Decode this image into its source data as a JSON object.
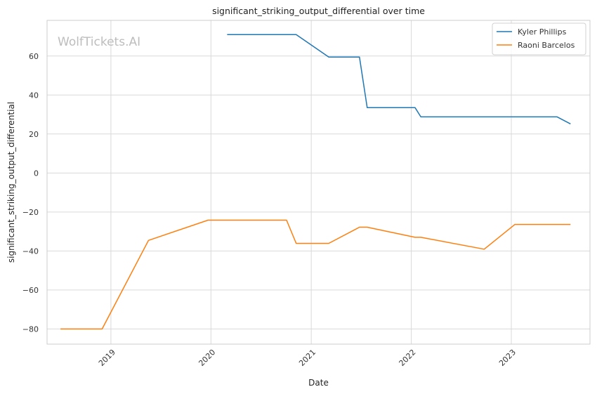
{
  "chart_data": {
    "type": "line",
    "title": "significant_striking_output_differential over time",
    "xlabel": "Date",
    "ylabel": "significant_striking_output_differential",
    "watermark": "WolfTickets.AI",
    "x_type": "date",
    "xlim": [
      "2018-05-13",
      "2023-10-15"
    ],
    "ylim": [
      -87.8,
      78.3
    ],
    "x_ticks": [
      "2019-01-01",
      "2020-01-01",
      "2021-01-01",
      "2022-01-01",
      "2023-01-01"
    ],
    "x_tick_labels": [
      "2019",
      "2020",
      "2021",
      "2022",
      "2023"
    ],
    "y_ticks": [
      -80,
      -60,
      -40,
      -20,
      0,
      20,
      40,
      60
    ],
    "y_tick_labels": [
      "−80",
      "−60",
      "−40",
      "−20",
      "0",
      "20",
      "40",
      "60"
    ],
    "grid": true,
    "legend_position": "top-right",
    "series": [
      {
        "name": "Kyler Phillips",
        "color": "#1f77b4",
        "points": [
          [
            "2020-02-29",
            71.0
          ],
          [
            "2020-11-07",
            71.0
          ],
          [
            "2021-03-06",
            59.5
          ],
          [
            "2021-06-26",
            59.5
          ],
          [
            "2021-07-24",
            33.5
          ],
          [
            "2022-01-15",
            33.5
          ],
          [
            "2022-02-05",
            28.8
          ],
          [
            "2023-06-17",
            28.8
          ],
          [
            "2023-08-05",
            25.2
          ]
        ]
      },
      {
        "name": "Raoni Barcelos",
        "color": "#ff7f0e",
        "points": [
          [
            "2018-07-01",
            -80.0
          ],
          [
            "2018-11-30",
            -80.0
          ],
          [
            "2019-05-18",
            -34.6
          ],
          [
            "2019-12-21",
            -24.2
          ],
          [
            "2020-10-03",
            -24.2
          ],
          [
            "2020-11-07",
            -36.1
          ],
          [
            "2021-03-06",
            -36.1
          ],
          [
            "2021-06-26",
            -27.8
          ],
          [
            "2021-07-24",
            -27.8
          ],
          [
            "2022-01-15",
            -33.0
          ],
          [
            "2022-02-05",
            -33.0
          ],
          [
            "2022-09-24",
            -39.1
          ],
          [
            "2023-01-14",
            -26.4
          ],
          [
            "2023-08-05",
            -26.4
          ]
        ]
      }
    ]
  }
}
